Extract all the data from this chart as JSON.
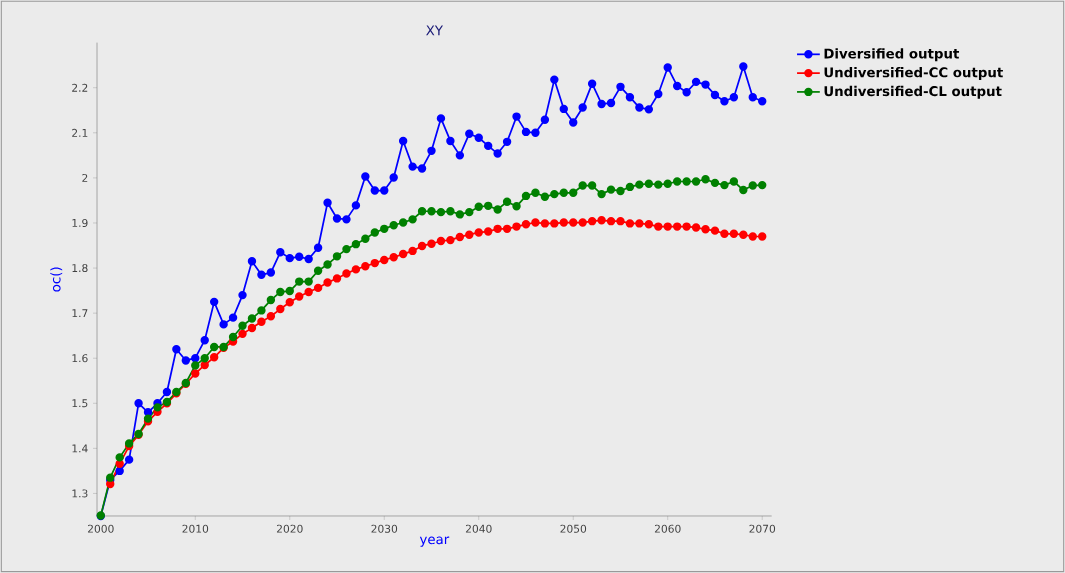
{
  "chart_data": {
    "type": "line",
    "title": "XY",
    "xlabel": "year",
    "ylabel": "oc()",
    "x": [
      2000,
      2001,
      2002,
      2003,
      2004,
      2005,
      2006,
      2007,
      2008,
      2009,
      2010,
      2011,
      2012,
      2013,
      2014,
      2015,
      2016,
      2017,
      2018,
      2019,
      2020,
      2021,
      2022,
      2023,
      2024,
      2025,
      2026,
      2027,
      2028,
      2029,
      2030,
      2031,
      2032,
      2033,
      2034,
      2035,
      2036,
      2037,
      2038,
      2039,
      2040,
      2041,
      2042,
      2043,
      2044,
      2045,
      2046,
      2047,
      2048,
      2049,
      2050,
      2051,
      2052,
      2053,
      2054,
      2055,
      2056,
      2057,
      2058,
      2059,
      2060,
      2061,
      2062,
      2063,
      2064,
      2065,
      2066,
      2067,
      2068,
      2069,
      2070
    ],
    "series": [
      {
        "name": "Diversified output",
        "color": "#0000ff",
        "values": [
          1.25,
          1.33,
          1.35,
          1.375,
          1.5,
          1.48,
          1.5,
          1.525,
          1.62,
          1.595,
          1.6,
          1.64,
          1.725,
          1.675,
          1.69,
          1.74,
          1.815,
          1.785,
          1.79,
          1.835,
          1.822,
          1.825,
          1.82,
          1.845,
          1.945,
          1.91,
          1.908,
          1.939,
          2.003,
          1.972,
          1.972,
          2.001,
          2.082,
          2.025,
          2.021,
          2.06,
          2.132,
          2.082,
          2.05,
          2.098,
          2.089,
          2.071,
          2.054,
          2.08,
          2.136,
          2.102,
          2.1,
          2.129,
          2.218,
          2.153,
          2.123,
          2.156,
          2.209,
          2.164,
          2.166,
          2.202,
          2.179,
          2.156,
          2.152,
          2.186,
          2.245,
          2.204,
          2.19,
          2.213,
          2.207,
          2.184,
          2.17,
          2.179,
          2.247,
          2.179,
          2.17
        ]
      },
      {
        "name": "Undiversified-CC output",
        "color": "#ff0000",
        "values": [
          null,
          1.321,
          1.366,
          1.405,
          1.43,
          1.46,
          1.481,
          1.5,
          1.522,
          1.543,
          1.566,
          1.585,
          1.602,
          1.623,
          1.637,
          1.654,
          1.667,
          1.681,
          1.693,
          1.709,
          1.724,
          1.737,
          1.747,
          1.756,
          1.768,
          1.777,
          1.788,
          1.797,
          1.804,
          1.811,
          1.818,
          1.824,
          1.831,
          1.838,
          1.849,
          1.854,
          1.86,
          1.862,
          1.869,
          1.874,
          1.879,
          1.881,
          1.887,
          1.887,
          1.892,
          1.897,
          1.901,
          1.899,
          1.899,
          1.901,
          1.901,
          1.901,
          1.904,
          1.906,
          1.904,
          1.904,
          1.899,
          1.899,
          1.897,
          1.892,
          1.892,
          1.892,
          1.892,
          1.89,
          1.886,
          1.883,
          1.876,
          1.876,
          1.874,
          1.87,
          1.87
        ]
      },
      {
        "name": "Undiversified-CL output",
        "color": "#008000",
        "values": [
          1.251,
          1.335,
          1.38,
          1.411,
          1.432,
          1.466,
          1.491,
          1.503,
          1.525,
          1.545,
          1.584,
          1.6,
          1.625,
          1.625,
          1.647,
          1.672,
          1.688,
          1.706,
          1.729,
          1.747,
          1.749,
          1.77,
          1.77,
          1.794,
          1.808,
          1.826,
          1.842,
          1.853,
          1.865,
          1.879,
          1.887,
          1.895,
          1.901,
          1.908,
          1.926,
          1.926,
          1.924,
          1.926,
          1.919,
          1.924,
          1.936,
          1.938,
          1.93,
          1.947,
          1.937,
          1.96,
          1.967,
          1.958,
          1.964,
          1.967,
          1.967,
          1.983,
          1.983,
          1.964,
          1.974,
          1.971,
          1.98,
          1.985,
          1.987,
          1.985,
          1.987,
          1.992,
          1.992,
          1.992,
          1.997,
          1.989,
          1.984,
          1.992,
          1.973,
          1.983,
          1.984
        ]
      }
    ],
    "xlim": [
      1999.6,
      2071
    ],
    "ylim": [
      1.25,
      2.3
    ],
    "xticks": [
      2000,
      2010,
      2020,
      2030,
      2040,
      2050,
      2060,
      2070
    ],
    "yticks": [
      1.3,
      1.4,
      1.5,
      1.6,
      1.7,
      1.8,
      1.9,
      2,
      2.1,
      2.2
    ],
    "legend": "top right",
    "marker": "circle",
    "line_style": "solid"
  }
}
